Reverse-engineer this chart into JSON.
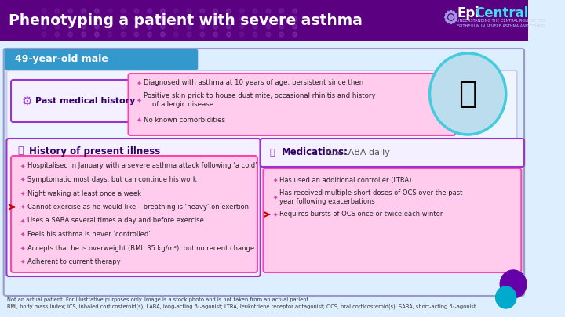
{
  "title": "Phenotyping a patient with severe asthma",
  "title_color": "#ffffff",
  "header_bg": "#5a0080",
  "logo_text_epi": "Epi",
  "logo_text_central": "Central",
  "logo_sub": "UNDERSTANDING THE CENTRAL ROLE OF THE\nEPITHELIUM IN SEVERE ASTHMA AND OTHERS",
  "patient_label": "49-year-old male",
  "patient_label_bg": "#3399cc",
  "main_bg": "#ddeeff",
  "pmh_title": "Past medical history",
  "pmh_bullets": [
    "Diagnosed with asthma at 10 years of age; persistent since then",
    "Positive skin prick to house dust mite, occasional rhinitis and history\n    of allergic disease",
    "No known comorbidities"
  ],
  "hpi_title": "History of present illness",
  "hpi_bullets": [
    "Hospitalised in January with a severe asthma attack following ‘a cold’",
    "Symptomatic most days, but can continue his work",
    "Night waking at least once a week",
    "Cannot exercise as he would like – breathing is ‘heavy’ on exertion",
    "Uses a SABA several times a day and before exercise",
    "Feels his asthma is never ‘controlled’",
    "Accepts that he is overweight (BMI: 35 kg/m²), but no recent change",
    "Adherent to current therapy"
  ],
  "med_title": "Medications:",
  "med_subtitle": "  ICS-LABA daily",
  "med_bullets": [
    "Has used an additional controller (LTRA)",
    "Has received multiple short doses of OCS over the past\nyear following exacerbations",
    "Requires bursts of OCS once or twice each winter"
  ],
  "footnote1": "Not an actual patient. For illustrative purposes only. Image is a stock photo and is not taken from an actual patient",
  "footnote2": "BMI, body mass index; ICS, inhaled corticosteroid(s); LABA, long-acting β₂-agonist; LTRA, leukotriene receptor antagonist; OCS, oral corticosteroid(s); SABA, short-acting β₂-agonist",
  "pink_box_bg": "#ffccee",
  "pink_box_border": "#ff44aa",
  "purple_box_border": "#9933cc",
  "light_blue_bg": "#cce5ff",
  "bullet_color": "#cc44aa",
  "section_title_color": "#330066",
  "footnote_color": "#333333"
}
